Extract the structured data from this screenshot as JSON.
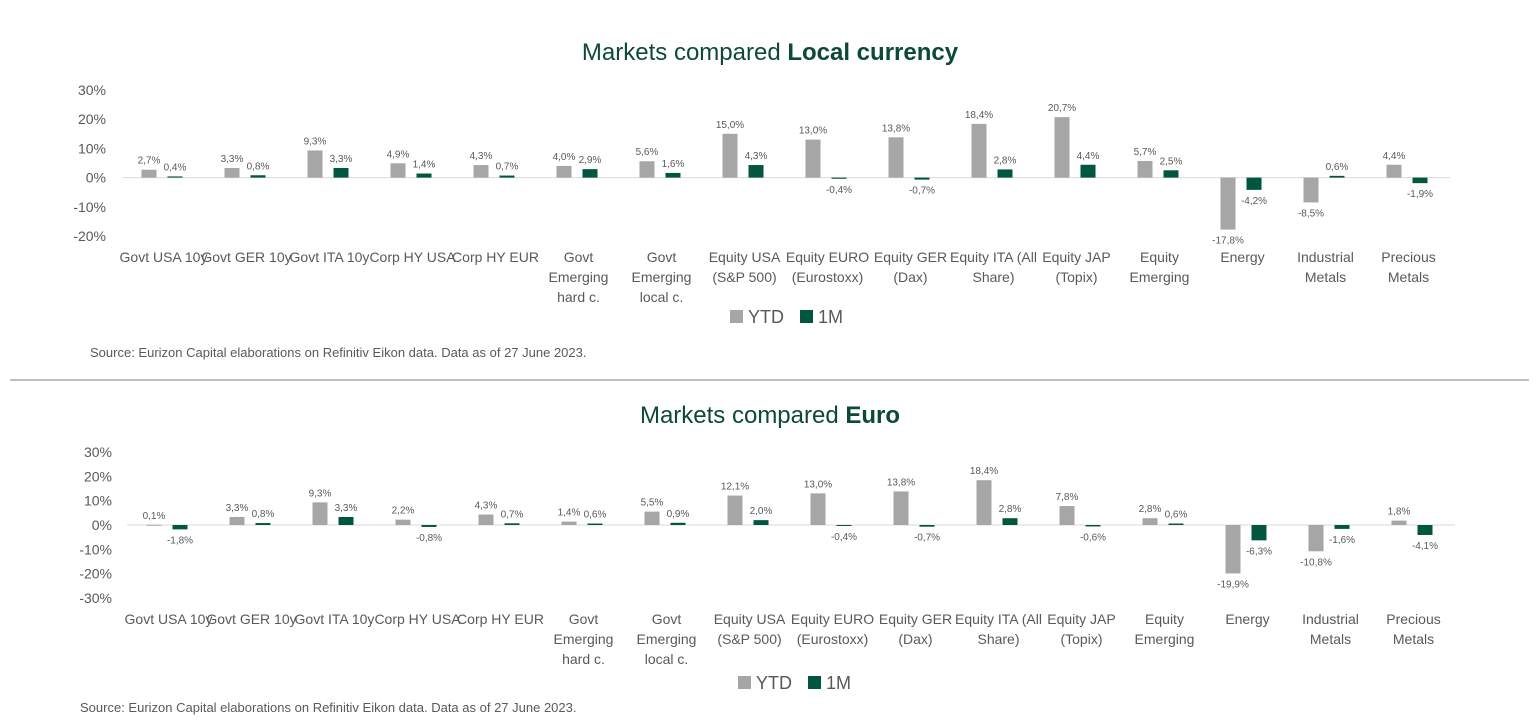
{
  "colors": {
    "ytd": "#a6a6a6",
    "one_month": "#00563f",
    "title": "#0d4a35",
    "text": "#595959",
    "divider": "#7f7f7f"
  },
  "chart_data": [
    {
      "type": "bar",
      "title_prefix": "Markets compared ",
      "title_bold": "Local currency",
      "ylim": [
        -20,
        30
      ],
      "yticks": [
        "30%",
        "20%",
        "10%",
        "0%",
        "-10%",
        "-20%"
      ],
      "tick_values": [
        30,
        20,
        10,
        0,
        -10,
        -20
      ],
      "categories": [
        [
          "Govt USA 10y"
        ],
        [
          "Govt GER 10y"
        ],
        [
          "Govt ITA 10y"
        ],
        [
          "Corp HY USA"
        ],
        [
          "Corp HY EUR"
        ],
        [
          "Govt",
          "Emerging",
          "hard c."
        ],
        [
          "Govt",
          "Emerging",
          "local c."
        ],
        [
          "Equity USA",
          "(S&P 500)"
        ],
        [
          "Equity EURO",
          "(Eurostoxx)"
        ],
        [
          "Equity GER",
          "(Dax)"
        ],
        [
          "Equity ITA (All",
          "Share)"
        ],
        [
          "Equity JAP",
          "(Topix)"
        ],
        [
          "Equity",
          "Emerging"
        ],
        [
          "Energy"
        ],
        [
          "Industrial",
          "Metals"
        ],
        [
          "Precious",
          "Metals"
        ]
      ],
      "series": [
        {
          "name": "YTD",
          "values": [
            2.7,
            3.3,
            9.3,
            4.9,
            4.3,
            4.0,
            5.6,
            15.0,
            13.0,
            13.8,
            18.4,
            20.7,
            5.7,
            -17.8,
            -8.5,
            4.4
          ],
          "labels": [
            "2,7%",
            "3,3%",
            "9,3%",
            "4,9%",
            "4,3%",
            "4,0%",
            "5,6%",
            "15,0%",
            "13,0%",
            "13,8%",
            "18,4%",
            "20,7%",
            "5,7%",
            "-17,8%",
            "-8,5%",
            "4,4%"
          ]
        },
        {
          "name": "1M",
          "values": [
            0.4,
            0.8,
            3.3,
            1.4,
            0.7,
            2.9,
            1.6,
            4.3,
            -0.4,
            -0.7,
            2.8,
            4.4,
            2.5,
            -4.2,
            0.6,
            -1.9
          ],
          "labels": [
            "0,4%",
            "0,8%",
            "3,3%",
            "1,4%",
            "0,7%",
            "2,9%",
            "1,6%",
            "4,3%",
            "-0,4%",
            "-0,7%",
            "2,8%",
            "4,4%",
            "2,5%",
            "-4,2%",
            "0,6%",
            "-1,9%"
          ]
        }
      ],
      "legend": [
        "YTD",
        "1M"
      ],
      "legend_position": "bottom",
      "source": "Source: Eurizon Capital elaborations on Refinitiv Eikon data. Data as of 27 June 2023."
    },
    {
      "type": "bar",
      "title_prefix": "Markets compared ",
      "title_bold": "Euro",
      "ylim": [
        -30,
        30
      ],
      "yticks": [
        "30%",
        "20%",
        "10%",
        "0%",
        "-10%",
        "-20%",
        "-30%"
      ],
      "tick_values": [
        30,
        20,
        10,
        0,
        -10,
        -20,
        -30
      ],
      "categories": [
        [
          "Govt USA 10y"
        ],
        [
          "Govt GER 10y"
        ],
        [
          "Govt ITA 10y"
        ],
        [
          "Corp HY USA"
        ],
        [
          "Corp HY EUR"
        ],
        [
          "Govt",
          "Emerging",
          "hard c."
        ],
        [
          "Govt",
          "Emerging",
          "local c."
        ],
        [
          "Equity USA",
          "(S&P 500)"
        ],
        [
          "Equity EURO",
          "(Eurostoxx)"
        ],
        [
          "Equity GER",
          "(Dax)"
        ],
        [
          "Equity ITA (All",
          "Share)"
        ],
        [
          "Equity JAP",
          "(Topix)"
        ],
        [
          "Equity",
          "Emerging"
        ],
        [
          "Energy"
        ],
        [
          "Industrial",
          "Metals"
        ],
        [
          "Precious",
          "Metals"
        ]
      ],
      "series": [
        {
          "name": "YTD",
          "values": [
            0.1,
            3.3,
            9.3,
            2.2,
            4.3,
            1.4,
            5.5,
            12.1,
            13.0,
            13.8,
            18.4,
            7.8,
            2.8,
            -19.9,
            -10.8,
            1.8
          ],
          "labels": [
            "0,1%",
            "3,3%",
            "9,3%",
            "2,2%",
            "4,3%",
            "1,4%",
            "5,5%",
            "12,1%",
            "13,0%",
            "13,8%",
            "18,4%",
            "7,8%",
            "2,8%",
            "-19,9%",
            "-10,8%",
            "1,8%"
          ]
        },
        {
          "name": "1M",
          "values": [
            -1.8,
            0.8,
            3.3,
            -0.8,
            0.7,
            0.6,
            0.9,
            2.0,
            -0.4,
            -0.7,
            2.8,
            -0.6,
            0.6,
            -6.3,
            -1.6,
            -4.1
          ],
          "labels": [
            "-1,8%",
            "0,8%",
            "3,3%",
            "-0,8%",
            "0,7%",
            "0,6%",
            "0,9%",
            "2,0%",
            "-0,4%",
            "-0,7%",
            "2,8%",
            "-0,6%",
            "0,6%",
            "-6,3%",
            "-1,6%",
            "-4,1%"
          ]
        }
      ],
      "legend": [
        "YTD",
        "1M"
      ],
      "legend_position": "bottom",
      "source": "Source: Eurizon Capital elaborations on Refinitiv Eikon data. Data as of 27 June 2023."
    }
  ]
}
